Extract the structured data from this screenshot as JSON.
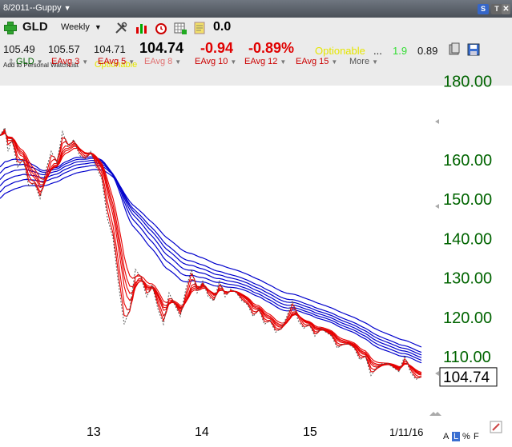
{
  "window": {
    "title": "8/2011--Guppy"
  },
  "header": {
    "symbol": "GLD",
    "interval": "Weekly",
    "change_value": "0.0",
    "open": "105.49",
    "high": "105.57",
    "low": "104.71",
    "last": "104.74",
    "change": "-0.94",
    "change_pct": "-0.89%",
    "optionable": "Optionable",
    "ellipsis": "...",
    "beta": "1.9",
    "extra": "0.89",
    "add_watchlist": "Add to Personal WatchList",
    "optionable2": "Optionable"
  },
  "studies": [
    {
      "label": "GLD",
      "color": "#006000"
    },
    {
      "label": "EAvg 3",
      "color": "#cc0000"
    },
    {
      "label": "EAvg 5",
      "color": "#cc0000"
    },
    {
      "label": "EAvg 8",
      "color": "#e07070"
    },
    {
      "label": "EAvg 10",
      "color": "#cc0000"
    },
    {
      "label": "EAvg 12",
      "color": "#cc0000"
    },
    {
      "label": "EAvg 15",
      "color": "#cc0000"
    },
    {
      "label": "More",
      "color": "#555555"
    }
  ],
  "chart_data": {
    "type": "line",
    "symbol": "GLD",
    "interval": "Weekly",
    "y_ticks": [
      "180.00",
      "160.00",
      "150.00",
      "140.00",
      "130.00",
      "120.00",
      "110.00"
    ],
    "y_tick_values": [
      180,
      160,
      150,
      140,
      130,
      120,
      110
    ],
    "x_ticks": [
      "13",
      "14",
      "15",
      "1/11/16"
    ],
    "last_price_label": "104.74",
    "last_price": 104.74,
    "grid": false,
    "price_series": {
      "name": "GLD",
      "x": [
        0,
        6,
        10,
        15,
        22,
        29,
        36,
        43,
        50,
        57,
        64,
        71,
        78,
        85,
        92,
        99,
        106,
        113,
        120,
        127,
        134,
        141,
        148,
        155,
        162,
        169,
        176,
        183,
        190,
        197,
        204,
        211,
        218,
        225,
        232,
        239,
        246,
        253,
        260,
        267,
        274,
        281,
        288,
        295,
        302,
        309,
        316,
        323,
        330,
        337,
        344,
        351,
        358,
        365,
        372,
        379,
        386,
        393,
        400,
        407,
        414,
        421,
        428,
        435,
        442,
        449,
        456,
        463,
        470,
        477,
        484,
        491,
        498,
        505,
        512,
        519,
        526
      ],
      "y": [
        166,
        168,
        162,
        165,
        158,
        160,
        153,
        154,
        150,
        157,
        162,
        159,
        167,
        163,
        165,
        161,
        160,
        162,
        158,
        155,
        145,
        140,
        128,
        118,
        122,
        132,
        130,
        125,
        128,
        122,
        118,
        126,
        123,
        120,
        127,
        132,
        126,
        129,
        125,
        124,
        129,
        125,
        127,
        126,
        124,
        123,
        120,
        122,
        118,
        119,
        116,
        117,
        120,
        124,
        119,
        117,
        118,
        115,
        117,
        116,
        115,
        112,
        113,
        113,
        112,
        109,
        110,
        105,
        107,
        108,
        108,
        107,
        106,
        110,
        106,
        104,
        104.74
      ]
    },
    "red_emas_periods": [
      3,
      5,
      8,
      10,
      12,
      15
    ],
    "blue_emas_periods": [
      30,
      35,
      40,
      45,
      50,
      60
    ],
    "red_color": "#e60000",
    "blue_color": "#0000cc",
    "price_color": "#555555"
  },
  "footer": {
    "letters": [
      "A",
      "L",
      "%",
      "F"
    ]
  }
}
